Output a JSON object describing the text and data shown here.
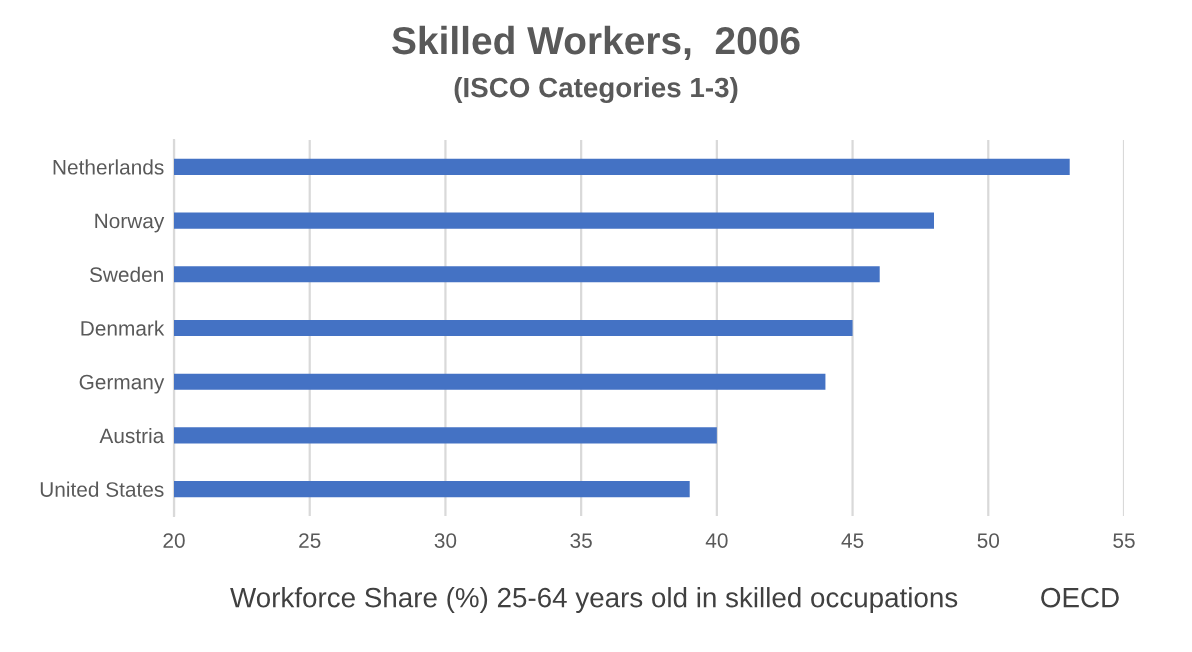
{
  "chart_data": {
    "type": "bar",
    "orientation": "horizontal",
    "title": "Skilled Workers,  2006",
    "subtitle": "(ISCO Categories 1-3)",
    "categories": [
      "Netherlands",
      "Norway",
      "Sweden",
      "Denmark",
      "Germany",
      "Austria",
      "United States"
    ],
    "values": [
      53,
      48,
      46,
      45,
      44,
      40,
      39
    ],
    "color": "#4472c4",
    "xlim": [
      20,
      55
    ],
    "xticks": [
      20,
      25,
      30,
      35,
      40,
      45,
      50,
      55
    ],
    "grid": "x",
    "xlabel": "Workforce Share (%) 25-64 years old in skilled occupations",
    "annotations": [
      "OECD"
    ]
  }
}
